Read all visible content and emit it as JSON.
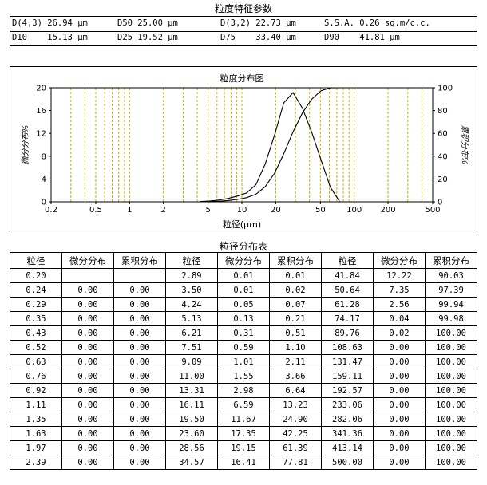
{
  "header": {
    "title": "粒度特征参数",
    "params": [
      [
        {
          "label": "D(4,3)",
          "value": "26.94",
          "unit": "μm"
        },
        {
          "label": "D50",
          "value": "25.00",
          "unit": "μm"
        },
        {
          "label": "D(3,2)",
          "value": "22.73",
          "unit": "μm"
        },
        {
          "label": "S.S.A.",
          "value": "0.26",
          "unit": "sq.m/c.c."
        }
      ],
      [
        {
          "label": "D10",
          "value": "15.13",
          "unit": "μm"
        },
        {
          "label": "D25",
          "value": "19.52",
          "unit": "μm"
        },
        {
          "label": "D75",
          "value": "33.40",
          "unit": "μm"
        },
        {
          "label": "D90",
          "value": "41.81",
          "unit": "μm"
        }
      ]
    ]
  },
  "chart_data": {
    "type": "line",
    "title": "粒度分布图",
    "xlabel": "粒径(μm)",
    "ylabel_left": "微分分布%",
    "ylabel_right": "累积分布%",
    "x_scale": "log",
    "xlim": [
      0.2,
      500
    ],
    "ylim_left": [
      0,
      20
    ],
    "ylim_right": [
      0,
      100
    ],
    "x_ticks": [
      "0.2",
      "0.5",
      "1",
      "2",
      "5",
      "10",
      "20",
      "50",
      "100",
      "200",
      "500"
    ],
    "y_left_ticks": [
      "0",
      "4",
      "8",
      "12",
      "16",
      "20"
    ],
    "y_right_ticks": [
      "0",
      "20",
      "40",
      "60",
      "80",
      "100"
    ],
    "grid": "vertical dashed",
    "series": [
      {
        "axis": "left",
        "x": [
          4.24,
          5.13,
          6.21,
          7.51,
          9.09,
          11.0,
          13.31,
          16.11,
          19.5,
          23.6,
          28.56,
          34.57,
          41.84,
          50.64,
          61.28,
          74.17
        ],
        "y": [
          0.05,
          0.13,
          0.31,
          0.59,
          1.01,
          1.55,
          2.98,
          6.59,
          11.67,
          17.35,
          19.15,
          16.41,
          12.22,
          7.35,
          2.56,
          0.04
        ]
      },
      {
        "axis": "right",
        "x": [
          4.24,
          5.13,
          6.21,
          7.51,
          9.09,
          11.0,
          13.31,
          16.11,
          19.5,
          23.6,
          28.56,
          34.57,
          41.84,
          50.64,
          61.28,
          74.17,
          89.76
        ],
        "y": [
          0.07,
          0.21,
          0.51,
          1.1,
          2.11,
          3.66,
          6.64,
          13.23,
          24.9,
          42.25,
          61.39,
          77.81,
          90.03,
          97.39,
          99.94,
          99.98,
          100.0
        ]
      }
    ]
  },
  "table": {
    "title": "粒径分布表",
    "headers": [
      "粒径",
      "微分分布",
      "累积分布",
      "粒径",
      "微分分布",
      "累积分布",
      "粒径",
      "微分分布",
      "累积分布"
    ],
    "rows": [
      [
        "0.20",
        "",
        "",
        "2.89",
        "0.01",
        "0.01",
        "41.84",
        "12.22",
        "90.03"
      ],
      [
        "0.24",
        "0.00",
        "0.00",
        "3.50",
        "0.01",
        "0.02",
        "50.64",
        "7.35",
        "97.39"
      ],
      [
        "0.29",
        "0.00",
        "0.00",
        "4.24",
        "0.05",
        "0.07",
        "61.28",
        "2.56",
        "99.94"
      ],
      [
        "0.35",
        "0.00",
        "0.00",
        "5.13",
        "0.13",
        "0.21",
        "74.17",
        "0.04",
        "99.98"
      ],
      [
        "0.43",
        "0.00",
        "0.00",
        "6.21",
        "0.31",
        "0.51",
        "89.76",
        "0.02",
        "100.00"
      ],
      [
        "0.52",
        "0.00",
        "0.00",
        "7.51",
        "0.59",
        "1.10",
        "108.63",
        "0.00",
        "100.00"
      ],
      [
        "0.63",
        "0.00",
        "0.00",
        "9.09",
        "1.01",
        "2.11",
        "131.47",
        "0.00",
        "100.00"
      ],
      [
        "0.76",
        "0.00",
        "0.00",
        "11.00",
        "1.55",
        "3.66",
        "159.11",
        "0.00",
        "100.00"
      ],
      [
        "0.92",
        "0.00",
        "0.00",
        "13.31",
        "2.98",
        "6.64",
        "192.57",
        "0.00",
        "100.00"
      ],
      [
        "1.11",
        "0.00",
        "0.00",
        "16.11",
        "6.59",
        "13.23",
        "233.06",
        "0.00",
        "100.00"
      ],
      [
        "1.35",
        "0.00",
        "0.00",
        "19.50",
        "11.67",
        "24.90",
        "282.06",
        "0.00",
        "100.00"
      ],
      [
        "1.63",
        "0.00",
        "0.00",
        "23.60",
        "17.35",
        "42.25",
        "341.36",
        "0.00",
        "100.00"
      ],
      [
        "1.97",
        "0.00",
        "0.00",
        "28.56",
        "19.15",
        "61.39",
        "413.14",
        "0.00",
        "100.00"
      ],
      [
        "2.39",
        "0.00",
        "0.00",
        "34.57",
        "16.41",
        "77.81",
        "500.00",
        "0.00",
        "100.00"
      ]
    ]
  }
}
